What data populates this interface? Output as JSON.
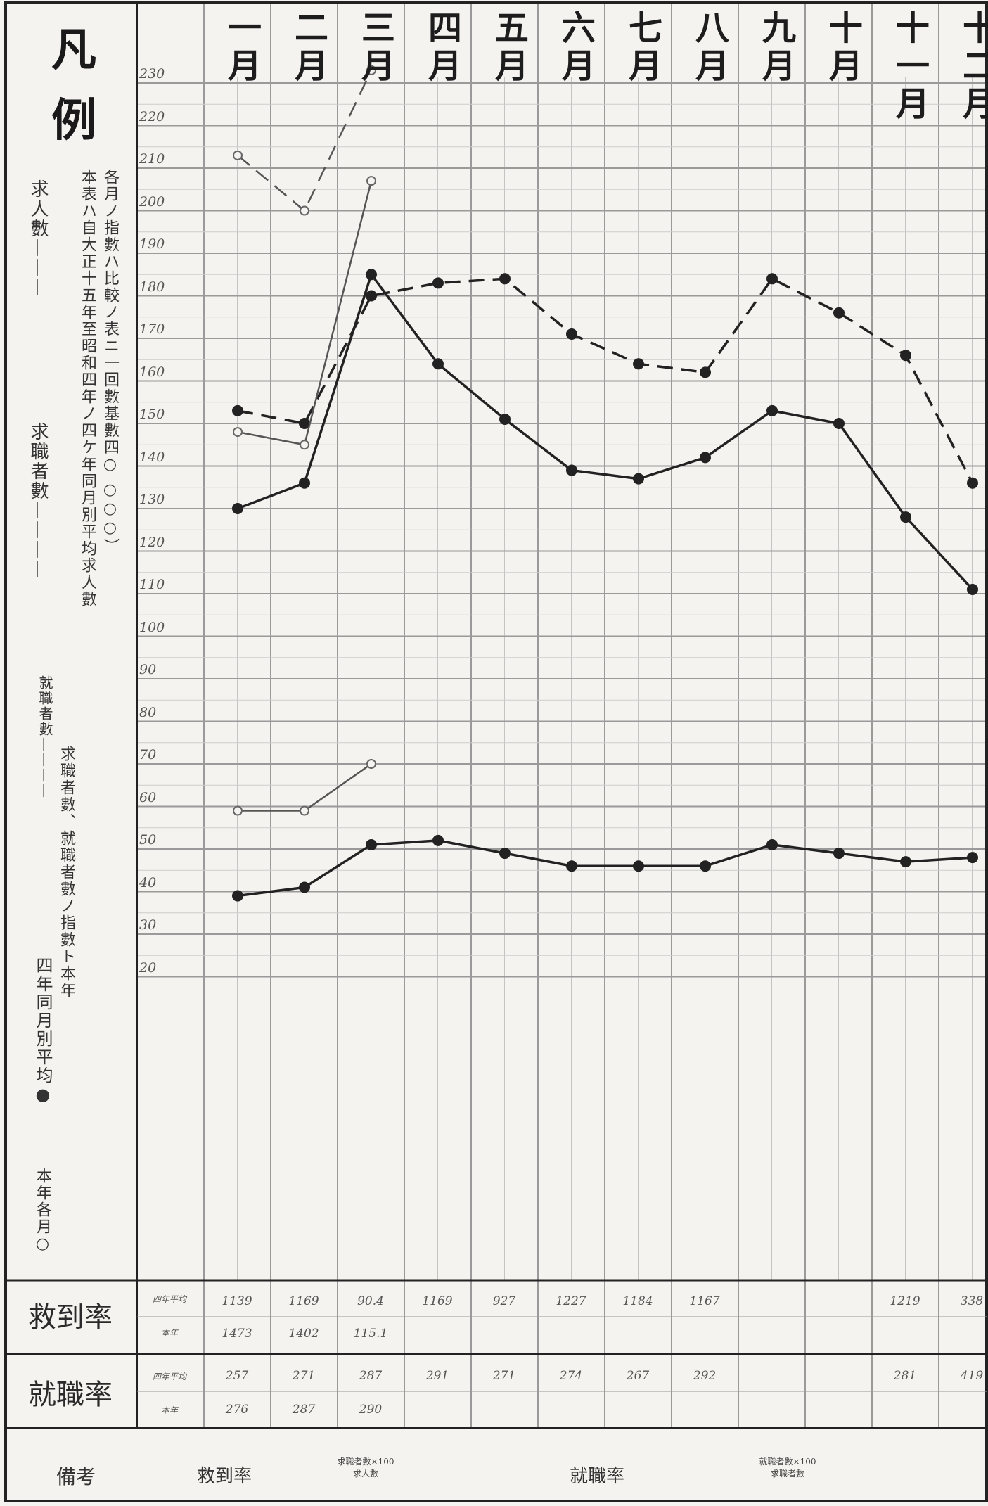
{
  "legend": {
    "title_1": "凡",
    "title_2": "例",
    "col_1": "求人數———",
    "col_2": "求職者數————",
    "col_3": "就職者數————",
    "col_4": "四年同月別平均●",
    "col_5": "本年各月○",
    "desc_1": "各月ノ指數ハ比較ノ表ニ一回數基數四○ ○○○）",
    "desc_2": "本表ハ自大正十五年至昭和四年ノ四ケ年同月別平均求人數",
    "desc_3": "求職者數、就職者數ノ指數ト本年"
  },
  "months": [
    "一月",
    "二月",
    "三月",
    "四月",
    "五月",
    "六月",
    "七月",
    "八月",
    "九月",
    "十月",
    "十一月",
    "十二月"
  ],
  "y_ticks": [
    "230",
    "220",
    "210",
    "200",
    "190",
    "180",
    "170",
    "160",
    "150",
    "140",
    "130",
    "120",
    "110",
    "100",
    "90",
    "80",
    "70",
    "60",
    "50",
    "40",
    "30",
    "20"
  ],
  "table": {
    "row1_label": "救到率",
    "row2_label": "就職率",
    "row1a_head": "四年平均",
    "row1b_head": "本年",
    "row2a_head": "四年平均",
    "row2b_head": "本年",
    "row1a": [
      "1139",
      "1169",
      "90.4",
      "1169",
      "927",
      "1227",
      "1184",
      "1167",
      "",
      "",
      "1219",
      "338"
    ],
    "row1b": [
      "1473",
      "1402",
      "115.1",
      "",
      "",
      "",
      "",
      "",
      "",
      "",
      "",
      ""
    ],
    "row2a": [
      "257",
      "271",
      "287",
      "291",
      "271",
      "274",
      "267",
      "292",
      "",
      "",
      "281",
      "419"
    ],
    "row2b": [
      "276",
      "287",
      "290",
      "",
      "",
      "",
      "",
      "",
      "",
      "",
      "",
      ""
    ]
  },
  "notes": {
    "label": "備考",
    "ratio1_name": "救到率",
    "ratio1_num": "求職者數×100",
    "ratio1_den": "求人數",
    "ratio2_name": "就職率",
    "ratio2_num": "就職者數×100",
    "ratio2_den": "求職者數"
  },
  "colors": {
    "ink": "#222222",
    "grid": "#9a9a9a",
    "paper": "#f4f3ef"
  },
  "chart_data": {
    "type": "line",
    "categories": [
      "一月",
      "二月",
      "三月",
      "四月",
      "五月",
      "六月",
      "七月",
      "八月",
      "九月",
      "十月",
      "十一月",
      "十二月"
    ],
    "ylim": [
      20,
      235
    ],
    "grid": true,
    "series": [
      {
        "style": "solid-filled",
        "values": [
          130,
          136,
          185,
          164,
          151,
          139,
          137,
          142,
          153,
          150,
          128,
          111
        ]
      },
      {
        "style": "dashed-filled",
        "values": [
          153,
          150,
          180,
          183,
          184,
          171,
          164,
          162,
          184,
          176,
          166,
          136
        ]
      },
      {
        "style": "solid-filled",
        "values": [
          39,
          41,
          51,
          52,
          49,
          46,
          46,
          46,
          51,
          49,
          47,
          48
        ]
      },
      {
        "style": "dashed-open",
        "values": [
          213,
          200,
          233,
          null,
          null,
          null,
          null,
          null,
          null,
          null,
          null,
          null
        ]
      },
      {
        "style": "solid-open",
        "values": [
          148,
          145,
          207,
          null,
          null,
          null,
          null,
          null,
          null,
          null,
          null,
          null
        ]
      },
      {
        "style": "solid-open",
        "values": [
          59,
          59,
          70,
          null,
          null,
          null,
          null,
          null,
          null,
          null,
          null,
          null
        ]
      }
    ]
  }
}
